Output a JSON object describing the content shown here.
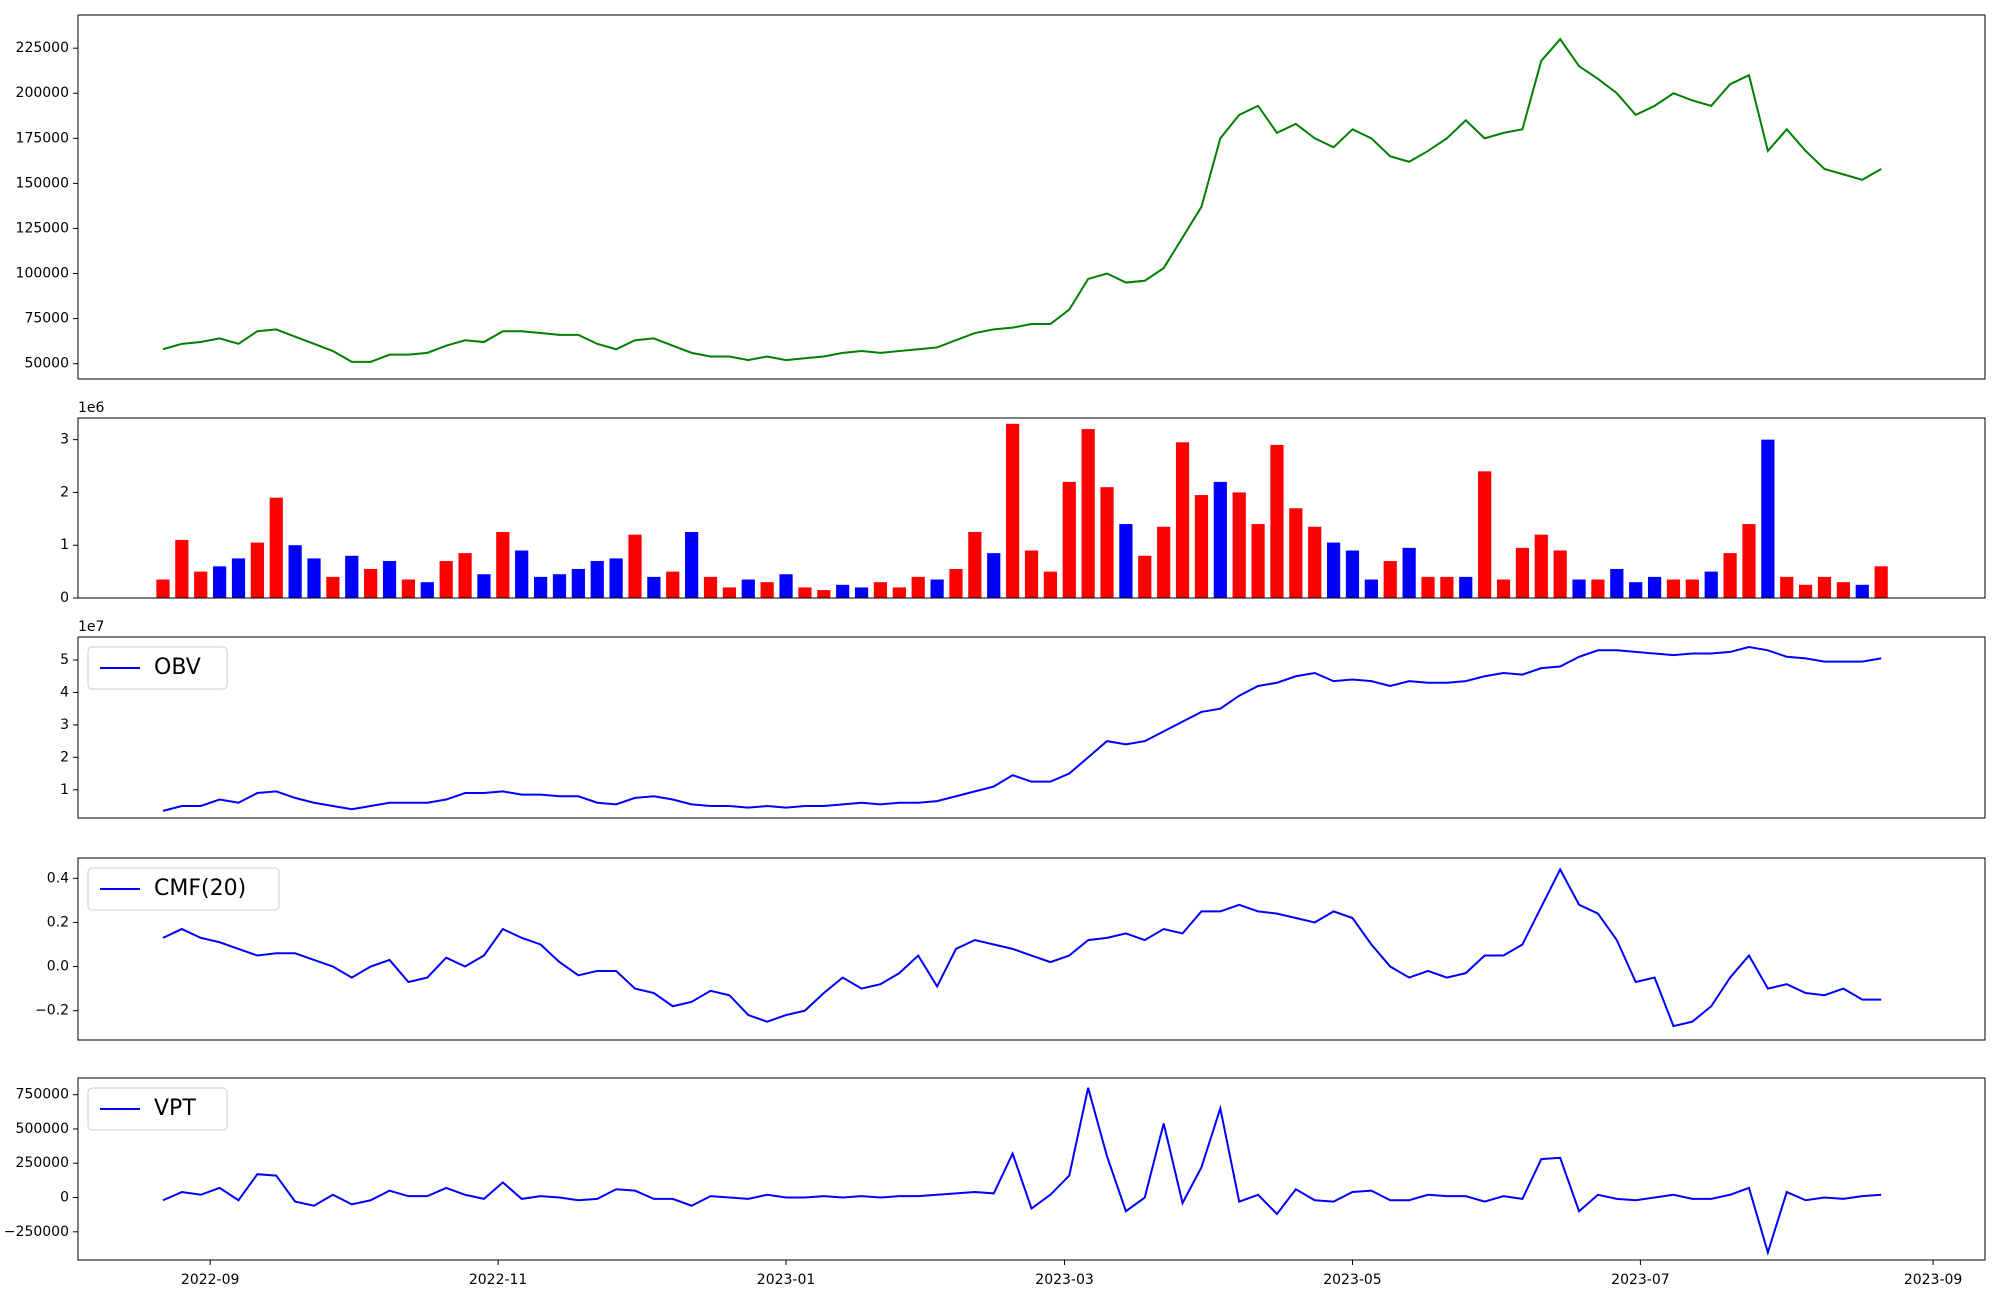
{
  "chart_data": {
    "type": "panels",
    "x": [
      "2022-08-22",
      "2022-08-26",
      "2022-08-30",
      "2022-09-03",
      "2022-09-07",
      "2022-09-11",
      "2022-09-15",
      "2022-09-19",
      "2022-09-23",
      "2022-09-27",
      "2022-10-01",
      "2022-10-05",
      "2022-10-09",
      "2022-10-13",
      "2022-10-17",
      "2022-10-21",
      "2022-10-25",
      "2022-10-29",
      "2022-11-02",
      "2022-11-06",
      "2022-11-10",
      "2022-11-14",
      "2022-11-18",
      "2022-11-22",
      "2022-11-26",
      "2022-11-30",
      "2022-12-04",
      "2022-12-08",
      "2022-12-12",
      "2022-12-16",
      "2022-12-20",
      "2022-12-24",
      "2022-12-28",
      "2023-01-01",
      "2023-01-05",
      "2023-01-09",
      "2023-01-13",
      "2023-01-17",
      "2023-01-21",
      "2023-01-25",
      "2023-01-29",
      "2023-02-02",
      "2023-02-06",
      "2023-02-10",
      "2023-02-14",
      "2023-02-18",
      "2023-02-22",
      "2023-02-26",
      "2023-03-02",
      "2023-03-06",
      "2023-03-10",
      "2023-03-14",
      "2023-03-18",
      "2023-03-22",
      "2023-03-26",
      "2023-03-30",
      "2023-04-03",
      "2023-04-07",
      "2023-04-11",
      "2023-04-15",
      "2023-04-19",
      "2023-04-23",
      "2023-04-27",
      "2023-05-01",
      "2023-05-05",
      "2023-05-09",
      "2023-05-13",
      "2023-05-17",
      "2023-05-21",
      "2023-05-25",
      "2023-05-29",
      "2023-06-02",
      "2023-06-06",
      "2023-06-10",
      "2023-06-14",
      "2023-06-18",
      "2023-06-22",
      "2023-06-26",
      "2023-06-30",
      "2023-07-04",
      "2023-07-08",
      "2023-07-12",
      "2023-07-16",
      "2023-07-20",
      "2023-07-24",
      "2023-07-28",
      "2023-08-01",
      "2023-08-05",
      "2023-08-09",
      "2023-08-13",
      "2023-08-17",
      "2023-08-21"
    ],
    "xlim": [
      "2022-08-04",
      "2023-09-12"
    ],
    "xticks": [
      {
        "value": "2022-09-01",
        "label": "2022-09"
      },
      {
        "value": "2022-11-01",
        "label": "2022-11"
      },
      {
        "value": "2023-01-01",
        "label": "2023-01"
      },
      {
        "value": "2023-03-01",
        "label": "2023-03"
      },
      {
        "value": "2023-05-01",
        "label": "2023-05"
      },
      {
        "value": "2023-07-01",
        "label": "2023-07"
      },
      {
        "value": "2023-09-01",
        "label": "2023-09"
      }
    ],
    "panels": [
      {
        "type": "line",
        "ylim": [
          41500,
          243400
        ],
        "yticks": [
          50000,
          75000,
          100000,
          125000,
          150000,
          175000,
          200000,
          225000
        ],
        "series": [
          {
            "color": "green",
            "values": [
              58000,
              61000,
              62000,
              64000,
              61000,
              68000,
              69000,
              65000,
              61000,
              57000,
              51000,
              51000,
              55000,
              55000,
              56000,
              60000,
              63000,
              62000,
              68000,
              68000,
              67000,
              66000,
              66000,
              61000,
              58000,
              63000,
              64000,
              60000,
              56000,
              54000,
              54000,
              52000,
              54000,
              52000,
              53000,
              54000,
              56000,
              57000,
              56000,
              57000,
              58000,
              59000,
              63000,
              67000,
              69000,
              70000,
              72000,
              72000,
              80000,
              97000,
              100000,
              95000,
              96000,
              103000,
              120000,
              137000,
              175000,
              188000,
              193000,
              178000,
              183000,
              175000,
              170000,
              180000,
              175000,
              165000,
              162000,
              168000,
              175000,
              185000,
              175000,
              178000,
              180000,
              218000,
              230000,
              215000,
              208000,
              200000,
              188000,
              193000,
              200000,
              196000,
              193000,
              205000,
              210000,
              168000,
              180000,
              168000,
              158000,
              155000,
              152000,
              158000
            ]
          }
        ]
      },
      {
        "type": "bar",
        "ylim": [
          0,
          3.41
        ],
        "yticks": [
          0,
          1,
          2,
          3
        ],
        "offset_label": "1e6",
        "series": [
          {
            "values": [
              0.35,
              1.1,
              0.5,
              0.6,
              0.75,
              1.05,
              1.9,
              1.0,
              0.75,
              0.4,
              0.8,
              0.55,
              0.7,
              0.35,
              0.3,
              0.7,
              0.85,
              0.45,
              1.25,
              0.9,
              0.4,
              0.45,
              0.55,
              0.7,
              0.75,
              1.2,
              0.4,
              0.5,
              1.25,
              0.4,
              0.2,
              0.35,
              0.3,
              0.45,
              0.2,
              0.15,
              0.25,
              0.2,
              0.3,
              0.2,
              0.4,
              0.35,
              0.55,
              1.25,
              0.85,
              3.3,
              0.9,
              0.5,
              2.2,
              3.2,
              2.1,
              1.4,
              0.8,
              1.35,
              2.95,
              1.95,
              2.2,
              2.0,
              1.4,
              2.9,
              1.7,
              1.35,
              1.05,
              0.9,
              0.35,
              0.7,
              0.95,
              0.4,
              0.4,
              0.4,
              2.4,
              0.35,
              0.95,
              1.2,
              0.9,
              0.35,
              0.35,
              0.55,
              0.3,
              0.4,
              0.35,
              0.35,
              0.5,
              0.85,
              1.4,
              3.0,
              0.4,
              0.25,
              0.4,
              0.3,
              0.25,
              0.6
            ],
            "colors": [
              "red",
              "red",
              "red",
              "blue",
              "blue",
              "red",
              "red",
              "blue",
              "blue",
              "red",
              "blue",
              "red",
              "blue",
              "red",
              "blue",
              "red",
              "red",
              "blue",
              "red",
              "blue",
              "blue",
              "blue",
              "blue",
              "blue",
              "blue",
              "red",
              "blue",
              "red",
              "blue",
              "red",
              "red",
              "blue",
              "red",
              "blue",
              "red",
              "red",
              "blue",
              "blue",
              "red",
              "red",
              "red",
              "blue",
              "red",
              "red",
              "blue",
              "red",
              "red",
              "red",
              "red",
              "red",
              "red",
              "blue",
              "red",
              "red",
              "red",
              "red",
              "blue",
              "red",
              "red",
              "red",
              "red",
              "red",
              "blue",
              "blue",
              "blue",
              "red",
              "blue",
              "red",
              "red",
              "blue",
              "red",
              "red",
              "red",
              "red",
              "red",
              "blue",
              "red",
              "blue",
              "blue",
              "blue",
              "red",
              "red",
              "blue",
              "red",
              "red",
              "blue",
              "red",
              "red",
              "red",
              "red",
              "blue",
              "red"
            ]
          }
        ]
      },
      {
        "type": "line",
        "ylim": [
          0.13,
          5.71
        ],
        "yticks": [
          1,
          2,
          3,
          4,
          5
        ],
        "offset_label": "1e7",
        "legend": "upper left",
        "series": [
          {
            "name": "OBV",
            "color": "blue",
            "values": [
              0.35,
              0.5,
              0.5,
              0.7,
              0.6,
              0.9,
              0.95,
              0.75,
              0.6,
              0.5,
              0.4,
              0.5,
              0.6,
              0.6,
              0.6,
              0.7,
              0.9,
              0.9,
              0.95,
              0.85,
              0.85,
              0.8,
              0.8,
              0.6,
              0.55,
              0.75,
              0.8,
              0.7,
              0.55,
              0.5,
              0.5,
              0.45,
              0.5,
              0.45,
              0.5,
              0.5,
              0.55,
              0.6,
              0.55,
              0.6,
              0.6,
              0.65,
              0.8,
              0.95,
              1.1,
              1.45,
              1.25,
              1.25,
              1.5,
              2.0,
              2.5,
              2.4,
              2.5,
              2.8,
              3.1,
              3.4,
              3.5,
              3.9,
              4.2,
              4.3,
              4.5,
              4.6,
              4.35,
              4.4,
              4.35,
              4.2,
              4.35,
              4.3,
              4.3,
              4.35,
              4.5,
              4.6,
              4.55,
              4.75,
              4.8,
              5.1,
              5.3,
              5.3,
              5.25,
              5.2,
              5.15,
              5.2,
              5.2,
              5.25,
              5.4,
              5.3,
              5.1,
              5.05,
              4.95,
              4.95,
              4.95,
              5.05
            ]
          }
        ]
      },
      {
        "type": "line",
        "ylim": [
          -0.333,
          0.492
        ],
        "yticks": [
          {
            "value": -0.2,
            "label": "−0.2"
          },
          {
            "value": 0,
            "label": "0.0"
          },
          0.2,
          0.4
        ],
        "legend": "upper left",
        "series": [
          {
            "name": "CMF(20)",
            "color": "blue",
            "values": [
              0.13,
              0.17,
              0.13,
              0.11,
              0.08,
              0.05,
              0.06,
              0.06,
              0.03,
              0.0,
              -0.05,
              0.0,
              0.03,
              -0.07,
              -0.05,
              0.04,
              0.0,
              0.05,
              0.17,
              0.13,
              0.1,
              0.02,
              -0.04,
              -0.02,
              -0.02,
              -0.1,
              -0.12,
              -0.18,
              -0.16,
              -0.11,
              -0.13,
              -0.22,
              -0.25,
              -0.22,
              -0.2,
              -0.12,
              -0.05,
              -0.1,
              -0.08,
              -0.03,
              0.05,
              -0.09,
              0.08,
              0.12,
              0.1,
              0.08,
              0.05,
              0.02,
              0.05,
              0.12,
              0.13,
              0.15,
              0.12,
              0.17,
              0.15,
              0.25,
              0.25,
              0.28,
              0.25,
              0.24,
              0.22,
              0.2,
              0.25,
              0.22,
              0.1,
              0.0,
              -0.05,
              -0.02,
              -0.05,
              -0.03,
              0.05,
              0.05,
              0.1,
              0.27,
              0.44,
              0.28,
              0.24,
              0.12,
              -0.07,
              -0.05,
              -0.27,
              -0.25,
              -0.18,
              -0.05,
              0.05,
              -0.1,
              -0.08,
              -0.12,
              -0.13,
              -0.1,
              -0.15,
              -0.15
            ]
          }
        ]
      },
      {
        "type": "line",
        "ylim": [
          -455600,
          871500
        ],
        "yticks": [
          {
            "value": -250000,
            "label": "−250000"
          },
          0,
          250000,
          500000,
          750000
        ],
        "legend": "upper left",
        "series": [
          {
            "name": "VPT",
            "color": "blue",
            "values": [
              -20000,
              40000,
              20000,
              70000,
              -20000,
              170000,
              160000,
              -30000,
              -60000,
              20000,
              -50000,
              -20000,
              50000,
              10000,
              10000,
              70000,
              20000,
              -10000,
              110000,
              -10000,
              10000,
              0,
              -20000,
              -10000,
              60000,
              50000,
              -10000,
              -10000,
              -60000,
              10000,
              0,
              -10000,
              20000,
              0,
              0,
              10000,
              0,
              10000,
              0,
              10000,
              10000,
              20000,
              30000,
              40000,
              30000,
              320000,
              -80000,
              20000,
              160000,
              800000,
              300000,
              -100000,
              0,
              540000,
              -40000,
              220000,
              650000,
              -30000,
              20000,
              -120000,
              60000,
              -20000,
              -30000,
              40000,
              50000,
              -20000,
              -20000,
              20000,
              10000,
              10000,
              -30000,
              10000,
              -10000,
              280000,
              290000,
              -100000,
              20000,
              -10000,
              -20000,
              0,
              20000,
              -10000,
              -10000,
              20000,
              70000,
              -400000,
              40000,
              -20000,
              0,
              -10000,
              10000,
              20000
            ]
          }
        ]
      }
    ]
  }
}
